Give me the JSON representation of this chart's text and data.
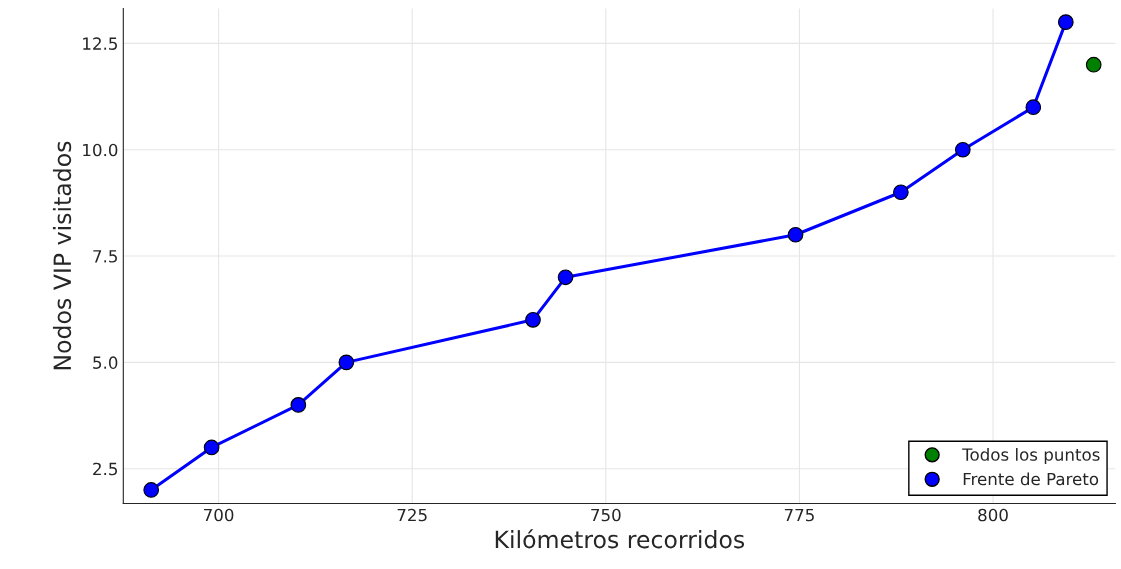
{
  "chart_data": {
    "type": "scatter",
    "xlabel": "Kilómetros recorridos",
    "ylabel": "Nodos VIP visitados",
    "series": [
      {
        "name": "Todos los puntos",
        "color": "#008000",
        "x": [
          813
        ],
        "values": [
          12
        ]
      },
      {
        "name": "Frente de Pareto",
        "type": "line",
        "color": "#0000ff",
        "x": [
          691.3,
          699.1,
          710.3,
          716.5,
          740.6,
          744.8,
          774.5,
          788.1,
          796.1,
          805.2,
          809.4
        ],
        "values": [
          2,
          3,
          4,
          5,
          6,
          7,
          8,
          9,
          10,
          11,
          13
        ]
      }
    ],
    "xlim": [
      687.7,
      815.8
    ],
    "xticks": [
      700,
      725,
      750,
      775,
      800
    ],
    "ylim": [
      1.68,
      13.32
    ],
    "yticks": [
      {
        "value": 2.5,
        "label": "2.5"
      },
      {
        "value": 5,
        "label": "5.0"
      },
      {
        "value": 7.5,
        "label": "7.5"
      },
      {
        "value": 10,
        "label": "10.0"
      },
      {
        "value": 12.5,
        "label": "12.5"
      }
    ],
    "grid": true,
    "legend": "bottom right",
    "marker": "circle"
  }
}
